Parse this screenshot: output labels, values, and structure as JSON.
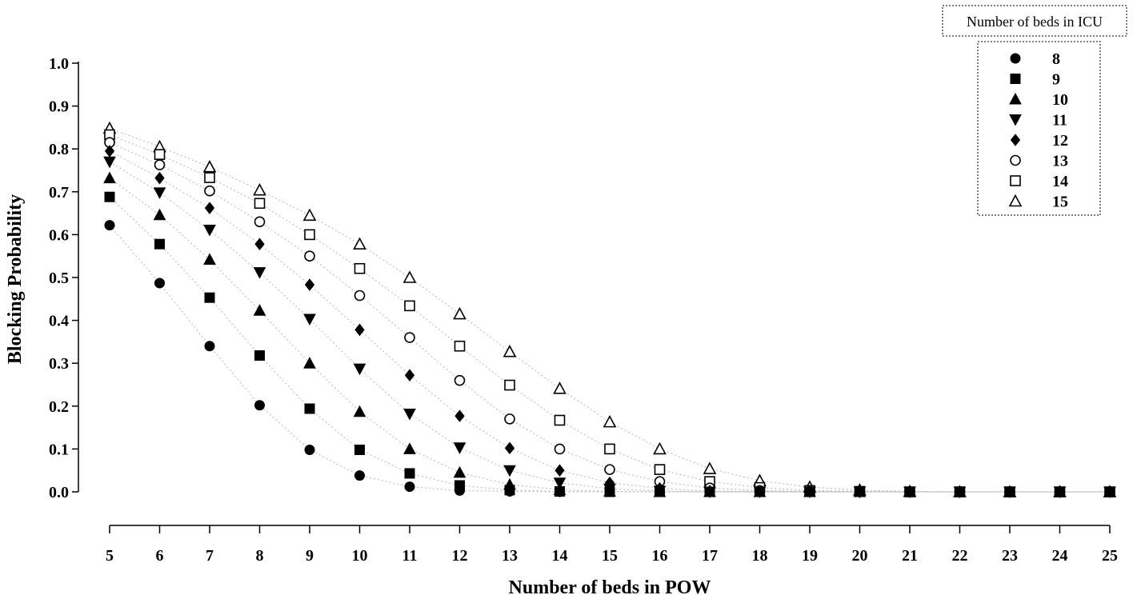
{
  "chart_data": {
    "type": "scatter",
    "xlabel": "Number of beds in POW",
    "ylabel": "Blocking Probability",
    "xlim": [
      5,
      25
    ],
    "ylim": [
      0,
      1.0
    ],
    "x_ticks": [
      5,
      6,
      7,
      8,
      9,
      10,
      11,
      12,
      13,
      14,
      15,
      16,
      17,
      18,
      19,
      20,
      21,
      22,
      23,
      24,
      25
    ],
    "y_ticks": [
      "0.0",
      "0.1",
      "0.2",
      "0.3",
      "0.4",
      "0.5",
      "0.6",
      "0.7",
      "0.8",
      "0.9",
      "1.0"
    ],
    "grid": false,
    "connector_lines": "dotted gray",
    "legend": {
      "title": "Number of  beds in ICU",
      "placement": "top-right"
    },
    "x": [
      5,
      6,
      7,
      8,
      9,
      10,
      11,
      12,
      13,
      14,
      15,
      16,
      17,
      18,
      19,
      20,
      21,
      22,
      23,
      24,
      25
    ],
    "series": [
      {
        "name": "8",
        "marker": "filled-circle",
        "values": [
          0.622,
          0.487,
          0.34,
          0.202,
          0.098,
          0.038,
          0.012,
          0.003,
          0.001,
          0,
          0,
          0,
          0,
          0,
          0,
          0,
          0,
          0,
          0,
          0,
          0
        ]
      },
      {
        "name": "9",
        "marker": "filled-square",
        "values": [
          0.688,
          0.578,
          0.453,
          0.318,
          0.194,
          0.098,
          0.043,
          0.015,
          0.004,
          0.001,
          0,
          0,
          0,
          0,
          0,
          0,
          0,
          0,
          0,
          0,
          0
        ]
      },
      {
        "name": "10",
        "marker": "filled-triangle-up",
        "values": [
          0.732,
          0.646,
          0.542,
          0.423,
          0.3,
          0.187,
          0.1,
          0.045,
          0.017,
          0.005,
          0.001,
          0,
          0,
          0,
          0,
          0,
          0,
          0,
          0,
          0,
          0
        ]
      },
      {
        "name": "11",
        "marker": "filled-triangle-down",
        "values": [
          0.77,
          0.698,
          0.611,
          0.512,
          0.403,
          0.287,
          0.182,
          0.103,
          0.05,
          0.021,
          0.007,
          0.002,
          0,
          0,
          0,
          0,
          0,
          0,
          0,
          0,
          0
        ]
      },
      {
        "name": "12",
        "marker": "filled-diamond",
        "values": [
          0.795,
          0.732,
          0.662,
          0.578,
          0.483,
          0.378,
          0.272,
          0.177,
          0.102,
          0.05,
          0.021,
          0.008,
          0.002,
          0.001,
          0,
          0,
          0,
          0,
          0,
          0,
          0
        ]
      },
      {
        "name": "13",
        "marker": "open-circle",
        "values": [
          0.815,
          0.763,
          0.702,
          0.63,
          0.55,
          0.458,
          0.36,
          0.26,
          0.17,
          0.1,
          0.052,
          0.024,
          0.009,
          0.003,
          0.001,
          0,
          0,
          0,
          0,
          0,
          0
        ]
      },
      {
        "name": "14",
        "marker": "open-square",
        "values": [
          0.833,
          0.787,
          0.733,
          0.673,
          0.6,
          0.521,
          0.434,
          0.34,
          0.249,
          0.167,
          0.1,
          0.052,
          0.024,
          0.01,
          0.003,
          0.001,
          0,
          0,
          0,
          0,
          0
        ]
      },
      {
        "name": "15",
        "marker": "open-triangle-up",
        "values": [
          0.848,
          0.805,
          0.758,
          0.704,
          0.645,
          0.578,
          0.5,
          0.415,
          0.327,
          0.241,
          0.163,
          0.1,
          0.054,
          0.026,
          0.011,
          0.004,
          0.001,
          0,
          0,
          0,
          0
        ]
      }
    ]
  }
}
